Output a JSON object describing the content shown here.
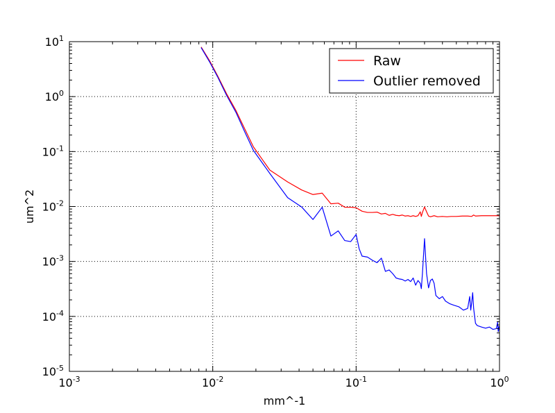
{
  "chart_data": {
    "type": "line",
    "xscale": "log",
    "yscale": "log",
    "xlabel": "mm^-1",
    "ylabel": "um^2",
    "xlim": [
      0.001,
      1
    ],
    "ylim": [
      1e-05,
      10
    ],
    "grid": true,
    "legend_position": "top-right",
    "x_ticks": [
      {
        "base": "10",
        "exp": "-3"
      },
      {
        "base": "10",
        "exp": "-2"
      },
      {
        "base": "10",
        "exp": "-1"
      },
      {
        "base": "10",
        "exp": "0"
      }
    ],
    "y_ticks": [
      {
        "base": "10",
        "exp": "-5"
      },
      {
        "base": "10",
        "exp": "-4"
      },
      {
        "base": "10",
        "exp": "-3"
      },
      {
        "base": "10",
        "exp": "-2"
      },
      {
        "base": "10",
        "exp": "-1"
      },
      {
        "base": "10",
        "exp": "0"
      },
      {
        "base": "10",
        "exp": "1"
      }
    ],
    "series": [
      {
        "name": "Raw",
        "color": "#ff0000",
        "points": [
          [
            0.0083,
            8.0
          ],
          [
            0.0095,
            4.5
          ],
          [
            0.0108,
            2.4
          ],
          [
            0.0125,
            1.12
          ],
          [
            0.0145,
            0.56
          ],
          [
            0.0167,
            0.26
          ],
          [
            0.0192,
            0.122
          ],
          [
            0.025,
            0.046
          ],
          [
            0.0333,
            0.028
          ],
          [
            0.0417,
            0.02
          ],
          [
            0.05,
            0.0165
          ],
          [
            0.058,
            0.0175
          ],
          [
            0.0667,
            0.0112
          ],
          [
            0.075,
            0.0115
          ],
          [
            0.0833,
            0.0097
          ],
          [
            0.0917,
            0.0097
          ],
          [
            0.1,
            0.0095
          ],
          [
            0.11,
            0.0082
          ],
          [
            0.12,
            0.0078
          ],
          [
            0.13,
            0.0078
          ],
          [
            0.14,
            0.0079
          ],
          [
            0.15,
            0.0073
          ],
          [
            0.16,
            0.0075
          ],
          [
            0.17,
            0.0069
          ],
          [
            0.18,
            0.0072
          ],
          [
            0.19,
            0.0069
          ],
          [
            0.2,
            0.0068
          ],
          [
            0.21,
            0.007
          ],
          [
            0.22,
            0.0067
          ],
          [
            0.23,
            0.0068
          ],
          [
            0.24,
            0.0066
          ],
          [
            0.25,
            0.0068
          ],
          [
            0.26,
            0.0066
          ],
          [
            0.27,
            0.0068
          ],
          [
            0.28,
            0.008
          ],
          [
            0.285,
            0.0066
          ],
          [
            0.29,
            0.0078
          ],
          [
            0.3,
            0.0098
          ],
          [
            0.31,
            0.008
          ],
          [
            0.32,
            0.0067
          ],
          [
            0.33,
            0.0065
          ],
          [
            0.35,
            0.0068
          ],
          [
            0.37,
            0.0065
          ],
          [
            0.4,
            0.0066
          ],
          [
            0.43,
            0.0065
          ],
          [
            0.46,
            0.0066
          ],
          [
            0.5,
            0.0066
          ],
          [
            0.55,
            0.0067
          ],
          [
            0.6,
            0.0067
          ],
          [
            0.64,
            0.0066
          ],
          [
            0.66,
            0.007
          ],
          [
            0.68,
            0.0067
          ],
          [
            0.75,
            0.0068
          ],
          [
            0.85,
            0.0068
          ],
          [
            1.0,
            0.0068
          ]
        ]
      },
      {
        "name": "Outlier removed",
        "color": "#0000ff",
        "points": [
          [
            0.0083,
            7.8
          ],
          [
            0.0095,
            4.3
          ],
          [
            0.0108,
            2.3
          ],
          [
            0.0125,
            1.05
          ],
          [
            0.0145,
            0.52
          ],
          [
            0.0167,
            0.23
          ],
          [
            0.0192,
            0.105
          ],
          [
            0.025,
            0.04
          ],
          [
            0.0333,
            0.0145
          ],
          [
            0.0417,
            0.0098
          ],
          [
            0.05,
            0.0058
          ],
          [
            0.058,
            0.0097
          ],
          [
            0.0667,
            0.0029
          ],
          [
            0.075,
            0.0036
          ],
          [
            0.0833,
            0.0024
          ],
          [
            0.0917,
            0.0023
          ],
          [
            0.1,
            0.0031
          ],
          [
            0.105,
            0.0017
          ],
          [
            0.11,
            0.00125
          ],
          [
            0.12,
            0.0012
          ],
          [
            0.13,
            0.00105
          ],
          [
            0.14,
            0.00095
          ],
          [
            0.15,
            0.00115
          ],
          [
            0.16,
            0.00066
          ],
          [
            0.17,
            0.0007
          ],
          [
            0.18,
            0.0006
          ],
          [
            0.19,
            0.0005
          ],
          [
            0.2,
            0.00048
          ],
          [
            0.21,
            0.00047
          ],
          [
            0.22,
            0.00044
          ],
          [
            0.23,
            0.00047
          ],
          [
            0.24,
            0.00043
          ],
          [
            0.25,
            0.0005
          ],
          [
            0.26,
            0.00037
          ],
          [
            0.27,
            0.00045
          ],
          [
            0.28,
            0.0004
          ],
          [
            0.285,
            0.00032
          ],
          [
            0.29,
            0.0006
          ],
          [
            0.3,
            0.0026
          ],
          [
            0.31,
            0.0006
          ],
          [
            0.32,
            0.00033
          ],
          [
            0.33,
            0.00045
          ],
          [
            0.34,
            0.00048
          ],
          [
            0.35,
            0.0004
          ],
          [
            0.36,
            0.00024
          ],
          [
            0.38,
            0.00021
          ],
          [
            0.4,
            0.00023
          ],
          [
            0.42,
            0.00019
          ],
          [
            0.45,
            0.00017
          ],
          [
            0.48,
            0.00016
          ],
          [
            0.52,
            0.00015
          ],
          [
            0.56,
            0.00013
          ],
          [
            0.6,
            0.00014
          ],
          [
            0.62,
            0.00023
          ],
          [
            0.63,
            0.00013
          ],
          [
            0.64,
            0.00018
          ],
          [
            0.65,
            0.00027
          ],
          [
            0.66,
            0.00014
          ],
          [
            0.68,
            7.5e-05
          ],
          [
            0.7,
            6.8e-05
          ],
          [
            0.75,
            6.4e-05
          ],
          [
            0.8,
            6.1e-05
          ],
          [
            0.85,
            6.4e-05
          ],
          [
            0.9,
            5.8e-05
          ],
          [
            0.95,
            6e-05
          ],
          [
            0.97,
            7.8e-05
          ],
          [
            0.98,
            5.3e-05
          ],
          [
            0.99,
            6.5e-05
          ],
          [
            1.0,
            5.5e-05
          ]
        ]
      }
    ]
  }
}
